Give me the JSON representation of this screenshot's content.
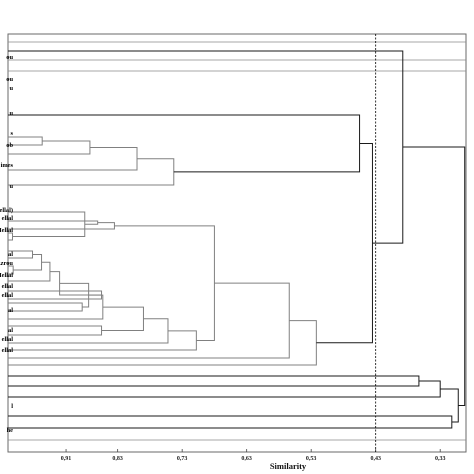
{
  "chart_data": {
    "type": "dendrogram",
    "xlabel": "Similarity",
    "xlim": [
      1.0,
      0.29
    ],
    "x_ticks": [
      "0,91",
      "0,83",
      "0,73",
      "0,63",
      "0,53",
      "0,43",
      "0,33"
    ],
    "x_tick_values": [
      0.91,
      0.83,
      0.73,
      0.63,
      0.53,
      0.43,
      0.33
    ],
    "cutoff_similarity": 0.43,
    "leaf_labels": [
      "ou",
      "ou",
      "u",
      "u",
      "s",
      "ob",
      "imes",
      "u",
      "Mellal)",
      "ellal",
      "e Mellal",
      "al",
      "Azrou",
      "Mellal",
      "ellal",
      "ellal",
      "al",
      "al",
      "ellal",
      "ellal",
      "l",
      "he"
    ],
    "merges": [
      {
        "a": "L3",
        "b": "L4",
        "sim": 0.947,
        "id": "A1"
      },
      {
        "a": "L8",
        "b": "L9",
        "sim": 0.993,
        "id": "A2"
      },
      {
        "a": "L13",
        "b": "L14",
        "sim": 0.962,
        "id": "A3"
      },
      {
        "a": "L15",
        "b": "L16",
        "sim": 0.992,
        "id": "A4"
      },
      {
        "a": "L18",
        "b": "L19",
        "sim": 0.855,
        "id": "A5"
      },
      {
        "a": "L20",
        "b": "L21",
        "sim": 0.885,
        "id": "A6"
      },
      {
        "a": "L23",
        "b": "L24",
        "sim": 0.855,
        "id": "A7"
      },
      {
        "a": "A1",
        "b": "L5",
        "sim": 0.873,
        "id": "B1"
      },
      {
        "a": "B1",
        "b": "L6",
        "sim": 0.8,
        "id": "B2"
      },
      {
        "a": "B2",
        "b": "L7",
        "sim": 0.743,
        "id": "B3"
      },
      {
        "a": "A2",
        "b": "L10",
        "sim": 0.881,
        "id": "B4"
      },
      {
        "a": "B4",
        "b": "L11",
        "sim": 0.861,
        "id": "B5"
      },
      {
        "a": "B5",
        "b": "L12",
        "sim": 0.835,
        "id": "B6"
      },
      {
        "a": "A3",
        "b": "A4",
        "sim": 0.948,
        "id": "B7"
      },
      {
        "a": "B7",
        "b": "L17",
        "sim": 0.935,
        "id": "B8"
      },
      {
        "a": "B8",
        "b": "A5",
        "sim": 0.92,
        "id": "B9"
      },
      {
        "a": "B9",
        "b": "A6",
        "sim": 0.875,
        "id": "C1"
      },
      {
        "a": "C1",
        "b": "L22",
        "sim": 0.853,
        "id": "C2"
      },
      {
        "a": "C2",
        "b": "A7",
        "sim": 0.79,
        "id": "C3"
      },
      {
        "a": "C3",
        "b": "L25",
        "sim": 0.752,
        "id": "C4"
      },
      {
        "a": "C4",
        "b": "L26",
        "sim": 0.708,
        "id": "C5"
      },
      {
        "a": "B6",
        "b": "C5",
        "sim": 0.68,
        "id": "C6"
      },
      {
        "a": "C6",
        "b": "L27",
        "sim": 0.564,
        "id": "C7"
      },
      {
        "a": "C7",
        "b": "L28",
        "sim": 0.522,
        "id": "C8"
      },
      {
        "a": "B3",
        "b": "L2",
        "sim": 0.455,
        "id": "D1"
      },
      {
        "a": "D1",
        "b": "C8",
        "sim": 0.435,
        "id": "D2"
      },
      {
        "a": "L1",
        "b": "D2",
        "sim": 0.388,
        "id": "D3"
      },
      {
        "a": "L29",
        "b": "L30",
        "sim": 0.363,
        "id": "E1"
      },
      {
        "a": "E1",
        "b": "L31",
        "sim": 0.33,
        "id": "E2"
      },
      {
        "a": "L32",
        "b": "L33",
        "sim": 0.312,
        "id": "E3"
      },
      {
        "a": "E2",
        "b": "E3",
        "sim": 0.302,
        "id": "E4"
      }
    ]
  }
}
